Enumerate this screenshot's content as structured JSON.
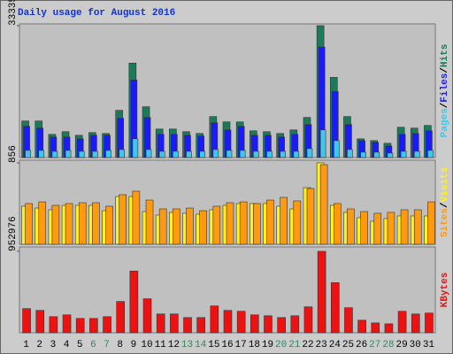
{
  "chart_data": [
    {
      "type": "bar",
      "title": "Daily usage for August 2016",
      "legend_separator": "/",
      "ylim": [
        0,
        33335
      ],
      "yticks": [
        33335
      ],
      "series": [
        {
          "name": "Pages",
          "color": "#3cc8f0",
          "values": [
            1802,
            1802,
            1577,
            1802,
            1577,
            1577,
            1802,
            2027,
            4730,
            2027,
            1577,
            1577,
            1577,
            1577,
            2027,
            1802,
            1802,
            1577,
            1577,
            1577,
            1577,
            2252,
            6982,
            4279,
            2027,
            1352,
            1352,
            1126,
            1577,
            1577,
            1802
          ]
        },
        {
          "name": "Files",
          "color": "#1a1aff",
          "values": [
            7883,
            7432,
            5180,
            5180,
            4730,
            5631,
            5631,
            9910,
            19595,
            10135,
            5856,
            5856,
            5631,
            5405,
            8784,
            6982,
            7883,
            5631,
            5631,
            5180,
            5856,
            8333,
            27928,
            16667,
            8333,
            4279,
            3829,
            2928,
            5856,
            6081,
            6757
          ]
        },
        {
          "name": "Hits",
          "color": "#1b7a5a",
          "values": [
            9234,
            9234,
            5856,
            6532,
            5631,
            6306,
            6081,
            11937,
            23874,
            12838,
            7207,
            7207,
            6532,
            6081,
            10360,
            9009,
            9009,
            6757,
            6532,
            6081,
            6982,
            10135,
            33335,
            20270,
            10360,
            4730,
            4279,
            3604,
            7658,
            7432,
            8108
          ]
        }
      ]
    },
    {
      "type": "bar",
      "legend_separator": "/",
      "ylim": [
        0,
        856
      ],
      "yticks": [
        856
      ],
      "series": [
        {
          "name": "Sites",
          "color": "#ff9a10",
          "values": [
            428,
            446,
            409,
            428,
            437,
            437,
            400,
            521,
            558,
            465,
            372,
            372,
            381,
            353,
            400,
            437,
            446,
            428,
            465,
            493,
            456,
            586,
            837,
            428,
            372,
            344,
            326,
            335,
            363,
            363,
            446
          ]
        },
        {
          "name": "Visits",
          "color": "#fff21a",
          "values": [
            400,
            381,
            363,
            409,
            409,
            409,
            353,
            502,
            502,
            344,
            307,
            335,
            326,
            316,
            363,
            409,
            428,
            428,
            428,
            400,
            372,
            595,
            856,
            409,
            335,
            279,
            242,
            270,
            298,
            298,
            298
          ]
        }
      ]
    },
    {
      "type": "bar",
      "ylim": [
        0,
        952976
      ],
      "yticks": [
        952976
      ],
      "categories": [
        "1",
        "2",
        "3",
        "4",
        "5",
        "6",
        "7",
        "8",
        "9",
        "10",
        "11",
        "12",
        "13",
        "14",
        "15",
        "16",
        "17",
        "18",
        "19",
        "20",
        "21",
        "22",
        "23",
        "24",
        "25",
        "26",
        "27",
        "28",
        "29",
        "30",
        "31"
      ],
      "category_colors": [
        "#000",
        "#000",
        "#000",
        "#000",
        "#000",
        "#2a8a5a",
        "#2a8a5a",
        "#000",
        "#000",
        "#000",
        "#000",
        "#000",
        "#2a8a5a",
        "#2a8a5a",
        "#000",
        "#000",
        "#000",
        "#000",
        "#000",
        "#2a8a5a",
        "#2a8a5a",
        "#000",
        "#000",
        "#000",
        "#000",
        "#000",
        "#2a8a5a",
        "#2a8a5a",
        "#000",
        "#000",
        "#000"
      ],
      "series": [
        {
          "name": "KBytes",
          "color": "#ee1111",
          "values": [
            282744,
            261800,
            188496,
            209440,
            167552,
            167552,
            188496,
            366520,
            722568,
            397936,
            219912,
            219912,
            178024,
            178024,
            314160,
            261800,
            251328,
            209440,
            198968,
            178024,
            198968,
            303688,
            952976,
            586432,
            293216,
            146608,
            115192,
            104720,
            251328,
            219912,
            230384
          ]
        }
      ]
    }
  ]
}
